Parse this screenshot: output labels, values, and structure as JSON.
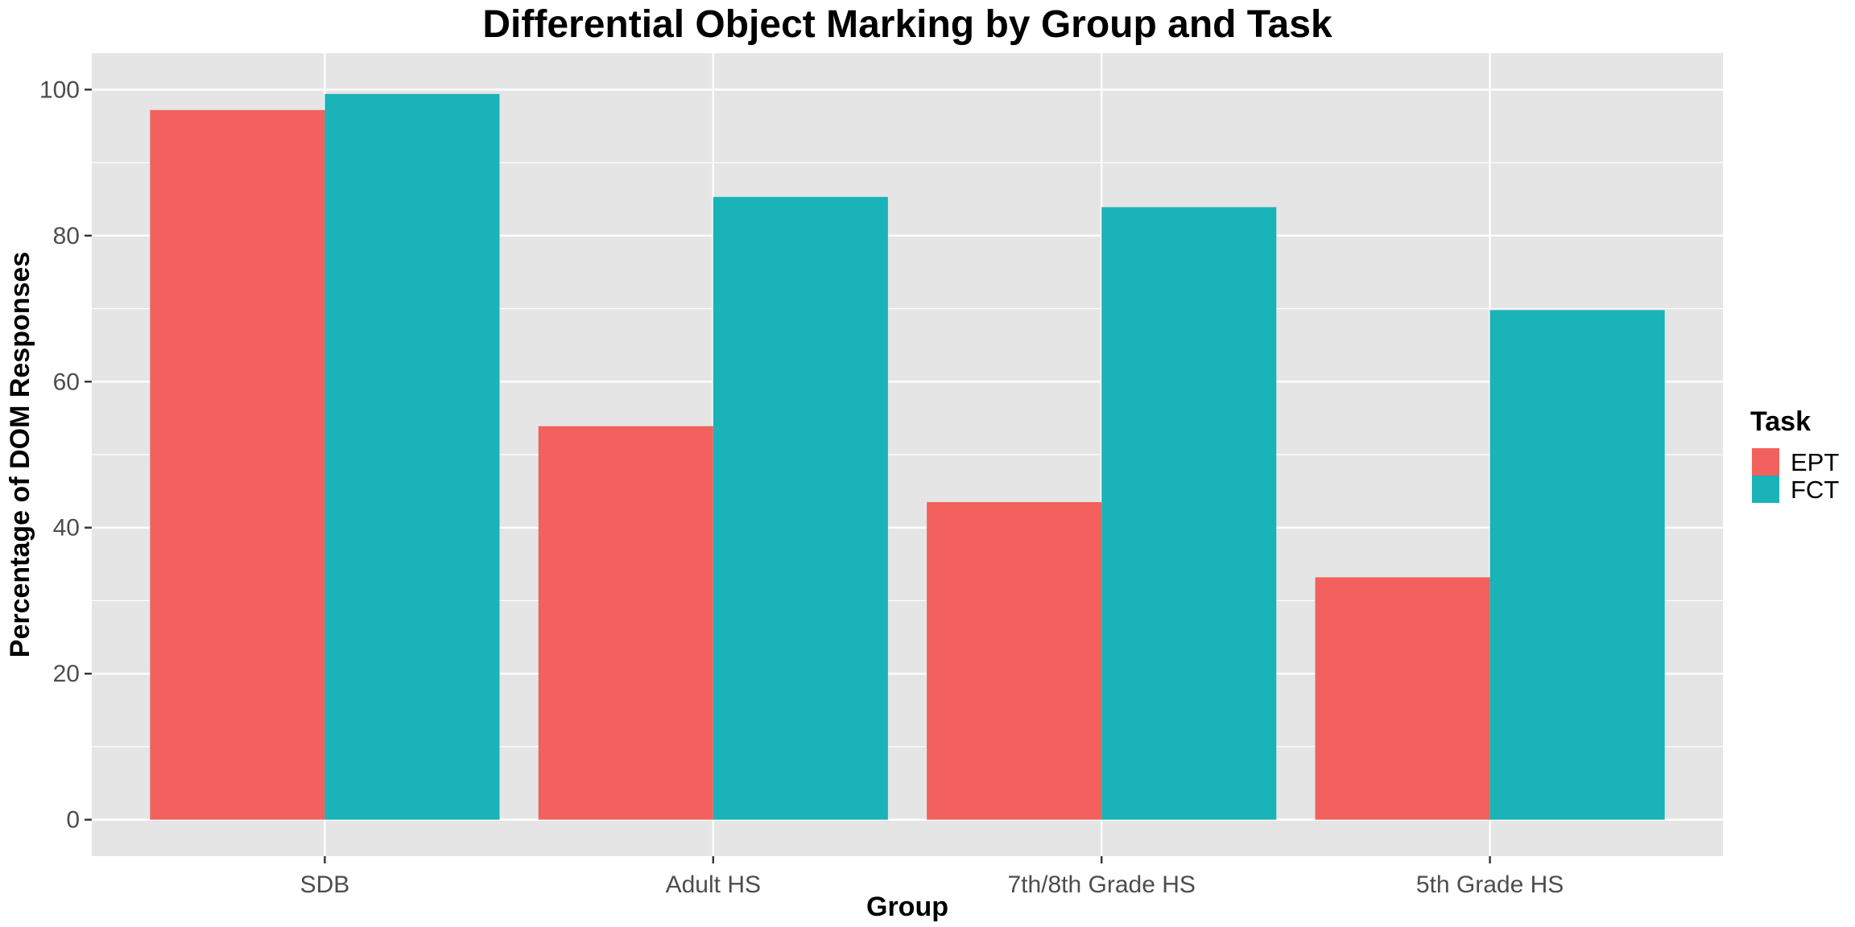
{
  "chart_data": {
    "type": "bar",
    "title": "Differential Object Marking by Group and Task",
    "xlabel": "Group",
    "ylabel": "Percentage of DOM Responses",
    "categories": [
      "SDB",
      "Adult HS",
      "7th/8th Grade HS",
      "5th Grade HS"
    ],
    "series": [
      {
        "name": "EPT",
        "color": "#F2615D",
        "values": [
          97.2,
          53.9,
          43.5,
          33.2
        ]
      },
      {
        "name": "FCT",
        "color": "#1AB3B8",
        "values": [
          99.4,
          85.3,
          83.9,
          69.8
        ]
      }
    ],
    "ylim": [
      -5,
      105
    ],
    "yticks": [
      0,
      20,
      40,
      60,
      80,
      100
    ],
    "grid": true,
    "legend": {
      "title": "Task",
      "position": "right"
    },
    "panel_color": "#E5E5E5",
    "grid_color": "#FFFFFF"
  }
}
